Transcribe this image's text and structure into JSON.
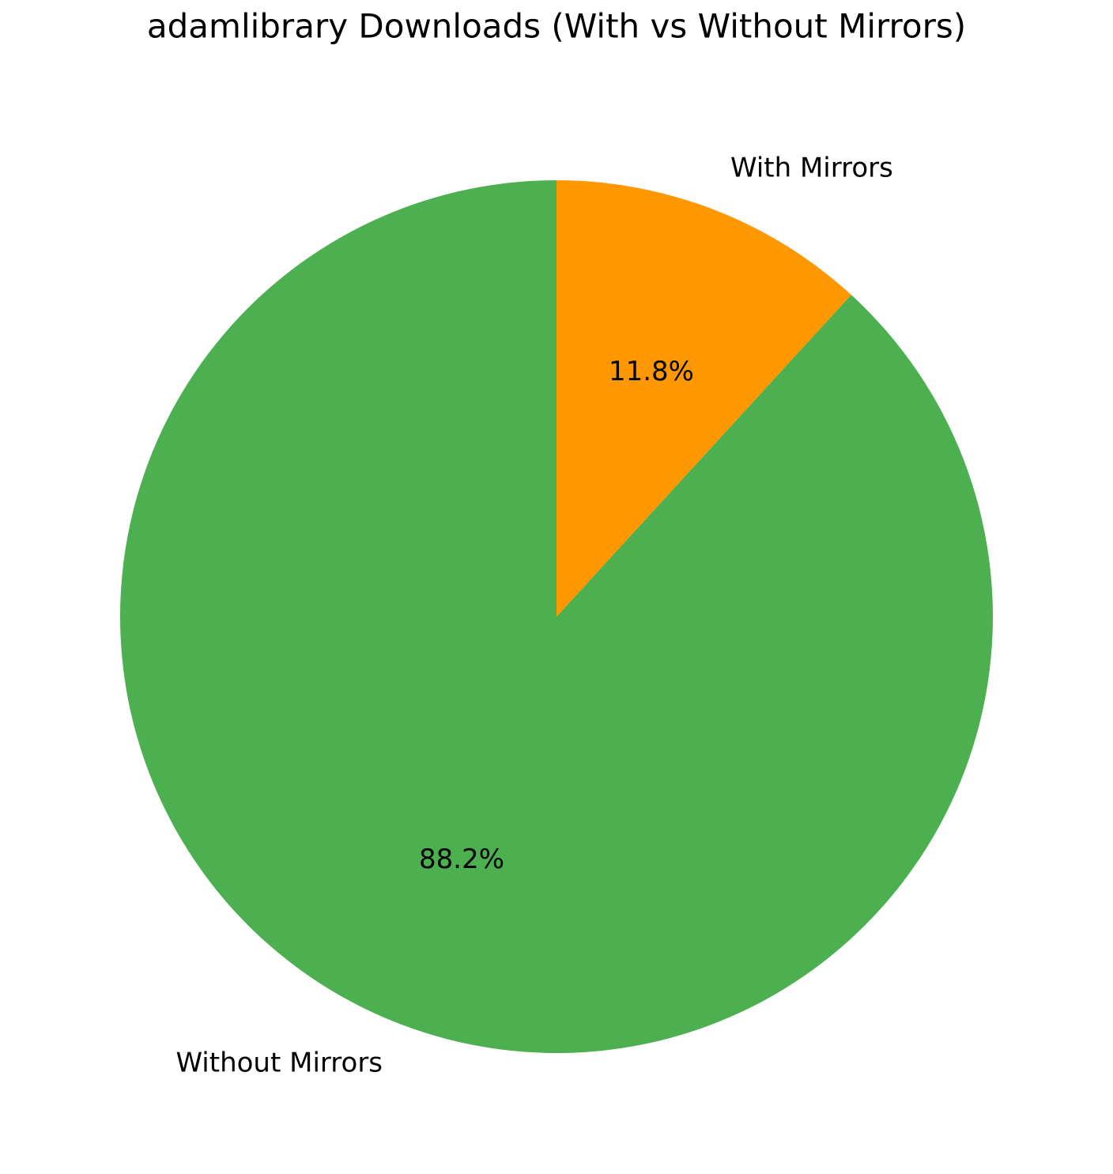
{
  "chart_data": {
    "type": "pie",
    "title": "adamlibrary Downloads (With vs Without Mirrors)",
    "categories": [
      "Without Mirrors",
      "With Mirrors"
    ],
    "values": [
      88.2,
      11.8
    ],
    "value_labels": [
      "88.2%",
      "11.8%"
    ],
    "colors": [
      "#4caf50",
      "#ff9800"
    ],
    "start_angle": 90,
    "counterclock": true
  }
}
